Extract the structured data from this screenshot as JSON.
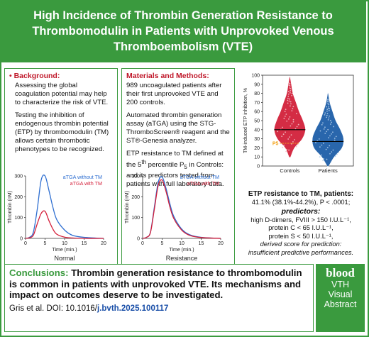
{
  "title": "High Incidence of Thrombin Generation Resistance to Thrombomodulin in Patients with Unprovoked Venous Thromboembolism (VTE)",
  "background": {
    "heading": "• Background:",
    "para1": "Assessing the global coagulation potential may help to characterize the risk of VTE.",
    "para2": "Testing the inhibition of endogenous thrombin potential (ETP) by thrombomodulin (TM) allows certain thrombotic phenotypes to be recognized."
  },
  "methods": {
    "heading": "Materials and Methods:",
    "para1": "989 uncoagulated patients after their first unprovoked VTE and 200 controls.",
    "para2": "Automated thrombin generation assay (aTGA) using the STG-ThromboScreen® reagent and the ST®-Genesia analyzer.",
    "para3": "ETP resistance to TM defined at the 5th percentile P5 in Controls: and its predictors tested from patients with full laboratory data."
  },
  "results": {
    "heading": "ETP resistance to TM, patients:",
    "value": "41.1% (38.1%-44.2%), P < .0001;",
    "predictors_heading": "predictors:",
    "predictor1": "high D-dimers, FVIII > 150 I.U.L⁻¹,",
    "predictor2": "protein C < 65 I.U.L⁻¹,",
    "predictor3": "protein S < 50 I.U.L⁻¹,",
    "derived1": "derived score for prediction:",
    "derived2": "insufficient predictive performances."
  },
  "conclusion": {
    "label": "Conclusions:",
    "text": "Thrombin generation resistance to thrombomodulin is common in patients with unprovoked VTE. Its mechanisms and impact on outcomes deserve to be investigated.",
    "citation": "Gris et al. DOI: 10.1016/",
    "doi": "j.bvth.2025.100117"
  },
  "logo": {
    "brand": "blood",
    "line1": "VTH",
    "line2": "Visual",
    "line3": "Abstract"
  },
  "colors": {
    "green": "#3a9a3e",
    "red": "#c0182a",
    "without_tm": "#2f6fd1",
    "with_tm": "#d41f3a",
    "controls_violin": "#d2213a",
    "patients_violin": "#1e5ea8"
  },
  "chart_data": [
    {
      "type": "line",
      "caption": "Normal",
      "ylabel": "Thrombin (nM)",
      "xlabel": "Time (min.)",
      "ylim": [
        0,
        300
      ],
      "yticks": [
        0,
        100,
        200,
        300
      ],
      "xlim": [
        0,
        20
      ],
      "xticks": [
        0,
        5,
        10,
        15,
        20
      ],
      "series": [
        {
          "name": "aTGA without TM",
          "x": [
            0,
            1,
            2,
            3,
            4,
            5,
            6,
            7,
            8,
            10,
            12,
            15,
            20
          ],
          "values": [
            0,
            5,
            30,
            140,
            280,
            300,
            230,
            150,
            90,
            40,
            15,
            5,
            0
          ]
        },
        {
          "name": "aTGA with TM",
          "x": [
            0,
            1,
            2,
            3,
            4,
            5,
            6,
            7,
            8,
            10,
            12,
            15,
            20
          ],
          "values": [
            0,
            3,
            15,
            70,
            120,
            130,
            85,
            45,
            20,
            6,
            2,
            0,
            0
          ]
        }
      ]
    },
    {
      "type": "line",
      "caption": "Resistance",
      "ylabel": "Thrombin (nM)",
      "xlabel": "Time (min.)",
      "ylim": [
        0,
        300
      ],
      "yticks": [
        0,
        100,
        200,
        300
      ],
      "xlim": [
        0,
        20
      ],
      "xticks": [
        0,
        5,
        10,
        15,
        20
      ],
      "series": [
        {
          "name": "aTGA without TM",
          "x": [
            0,
            1,
            2,
            3,
            4,
            5,
            6,
            7,
            8,
            10,
            12,
            15,
            20
          ],
          "values": [
            0,
            5,
            30,
            150,
            270,
            295,
            240,
            165,
            105,
            45,
            18,
            5,
            0
          ]
        },
        {
          "name": "aTGA with TM",
          "x": [
            0,
            1,
            2,
            3,
            4,
            5,
            6,
            7,
            8,
            10,
            12,
            15,
            20
          ],
          "values": [
            0,
            5,
            28,
            140,
            255,
            280,
            225,
            150,
            95,
            40,
            15,
            4,
            0
          ]
        }
      ]
    },
    {
      "type": "violin",
      "ylabel": "TM-induced ETP inhibition, %",
      "ylim": [
        0,
        100
      ],
      "yticks": [
        0,
        10,
        20,
        30,
        40,
        50,
        60,
        70,
        80,
        90,
        100
      ],
      "categories": [
        "Controls",
        "Patients"
      ],
      "medians": [
        40,
        27
      ],
      "p5_label": "P5",
      "p5_value": 25,
      "series": [
        {
          "name": "Controls",
          "min": 10,
          "max": 98,
          "widths_at": [
            10,
            20,
            30,
            40,
            50,
            60,
            70,
            80,
            90,
            98
          ],
          "widths": [
            0.05,
            0.3,
            0.8,
            1.0,
            0.85,
            0.6,
            0.4,
            0.2,
            0.1,
            0.02
          ]
        },
        {
          "name": "Patients",
          "min": 0,
          "max": 80,
          "widths_at": [
            0,
            10,
            20,
            30,
            40,
            50,
            60,
            70,
            80
          ],
          "widths": [
            0.05,
            0.4,
            0.9,
            1.0,
            0.8,
            0.5,
            0.3,
            0.12,
            0.02
          ]
        }
      ]
    }
  ]
}
